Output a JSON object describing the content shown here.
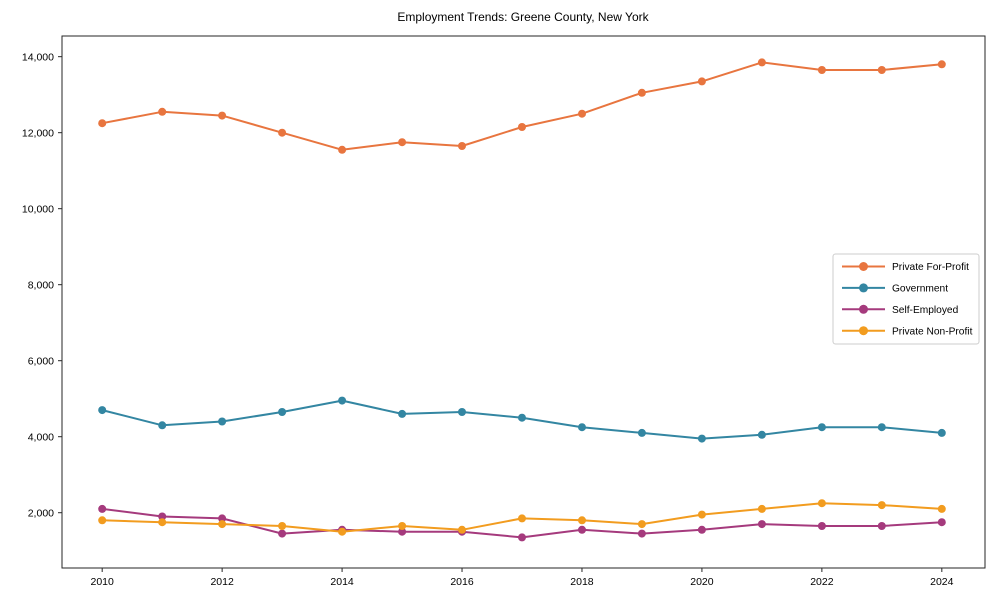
{
  "chart_data": {
    "type": "line",
    "title": "Employment Trends: Greene County, New York",
    "xlabel": "",
    "ylabel": "",
    "grid": false,
    "legend_position": "center right",
    "x": [
      2010,
      2011,
      2012,
      2013,
      2014,
      2015,
      2016,
      2017,
      2018,
      2019,
      2020,
      2021,
      2022,
      2023,
      2024
    ],
    "series": [
      {
        "name": "Private For-Profit",
        "color": "#E8753F",
        "values": [
          12250,
          12550,
          12450,
          12000,
          11550,
          11750,
          11650,
          12150,
          12500,
          13050,
          13350,
          13850,
          13650,
          13650,
          13800
        ]
      },
      {
        "name": "Government",
        "color": "#3386A2",
        "values": [
          4700,
          4300,
          4400,
          4650,
          4950,
          4600,
          4650,
          4500,
          4250,
          4100,
          3950,
          4050,
          4250,
          4250,
          4100
        ]
      },
      {
        "name": "Self-Employed",
        "color": "#A53A7D",
        "values": [
          2100,
          1900,
          1850,
          1450,
          1550,
          1500,
          1500,
          1350,
          1550,
          1450,
          1550,
          1700,
          1650,
          1650,
          1750
        ]
      },
      {
        "name": "Private Non-Profit",
        "color": "#F29C1F",
        "values": [
          1800,
          1750,
          1700,
          1650,
          1500,
          1650,
          1550,
          1850,
          1800,
          1700,
          1950,
          2100,
          2250,
          2200,
          2100
        ]
      }
    ],
    "xlim": [
      2009.33,
      2024.72
    ],
    "ylim": [
      545,
      14544
    ],
    "x_tick_values": [
      2010,
      2012,
      2014,
      2016,
      2018,
      2020,
      2022,
      2024
    ],
    "x_tick_labels": [
      "2010",
      "2012",
      "2014",
      "2016",
      "2018",
      "2020",
      "2022",
      "2024"
    ],
    "y_tick_values": [
      2000,
      4000,
      6000,
      8000,
      10000,
      12000,
      14000
    ],
    "y_tick_labels": [
      "2,000",
      "4,000",
      "6,000",
      "8,000",
      "10,000",
      "12,000",
      "14,000"
    ],
    "spine_color": "#262626",
    "tick_color": "#262626",
    "legend_border_color": "#cccccc",
    "background_color": "#ffffff"
  }
}
